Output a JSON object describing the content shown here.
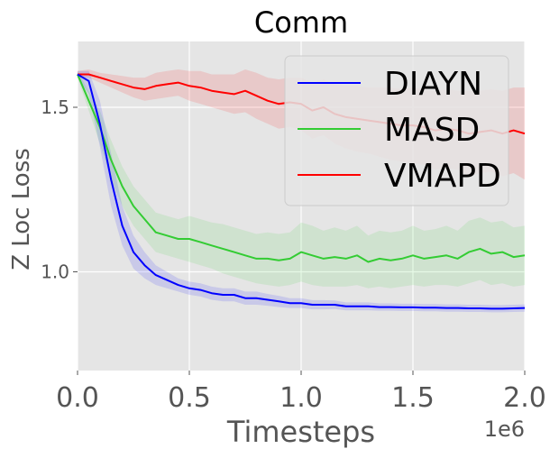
{
  "chart_data": {
    "type": "line",
    "title": "Comm",
    "xlabel": "Timesteps",
    "ylabel": "Z Loc Loss",
    "x_offset_label": "1e6",
    "xlim": [
      0,
      2.0
    ],
    "ylim": [
      0.7,
      1.7
    ],
    "xticks": [
      0.0,
      0.5,
      1.0,
      1.5,
      2.0
    ],
    "xtick_labels": [
      "0.0",
      "0.5",
      "1.0",
      "1.5",
      "2.0"
    ],
    "yticks": [
      1.0,
      1.5
    ],
    "ytick_labels": [
      "1.0",
      "1.5"
    ],
    "grid": true,
    "legend_position": "top-right",
    "x": [
      0.0,
      0.05,
      0.1,
      0.15,
      0.2,
      0.25,
      0.3,
      0.35,
      0.4,
      0.45,
      0.5,
      0.55,
      0.6,
      0.65,
      0.7,
      0.75,
      0.8,
      0.85,
      0.9,
      0.95,
      1.0,
      1.05,
      1.1,
      1.15,
      1.2,
      1.25,
      1.3,
      1.35,
      1.4,
      1.45,
      1.5,
      1.55,
      1.6,
      1.65,
      1.7,
      1.75,
      1.8,
      1.85,
      1.9,
      1.95,
      2.0
    ],
    "series": [
      {
        "name": "DIAYN",
        "color": "#0000ff",
        "values": [
          1.6,
          1.58,
          1.45,
          1.28,
          1.14,
          1.06,
          1.02,
          0.99,
          0.975,
          0.96,
          0.95,
          0.945,
          0.935,
          0.93,
          0.93,
          0.92,
          0.92,
          0.915,
          0.91,
          0.905,
          0.905,
          0.9,
          0.9,
          0.9,
          0.895,
          0.895,
          0.895,
          0.893,
          0.893,
          0.892,
          0.892,
          0.891,
          0.891,
          0.89,
          0.89,
          0.889,
          0.889,
          0.888,
          0.888,
          0.889,
          0.89
        ],
        "lower": [
          1.59,
          1.54,
          1.38,
          1.2,
          1.08,
          1.01,
          0.98,
          0.96,
          0.95,
          0.94,
          0.93,
          0.925,
          0.915,
          0.91,
          0.91,
          0.9,
          0.9,
          0.897,
          0.893,
          0.89,
          0.89,
          0.886,
          0.886,
          0.887,
          0.883,
          0.883,
          0.883,
          0.882,
          0.882,
          0.881,
          0.881,
          0.88,
          0.88,
          0.879,
          0.879,
          0.878,
          0.878,
          0.877,
          0.877,
          0.878,
          0.879
        ],
        "upper": [
          1.61,
          1.61,
          1.52,
          1.36,
          1.2,
          1.11,
          1.06,
          1.02,
          1.0,
          0.98,
          0.97,
          0.965,
          0.955,
          0.95,
          0.95,
          0.94,
          0.94,
          0.933,
          0.927,
          0.92,
          0.92,
          0.914,
          0.914,
          0.913,
          0.907,
          0.907,
          0.907,
          0.904,
          0.904,
          0.903,
          0.903,
          0.902,
          0.902,
          0.901,
          0.901,
          0.9,
          0.9,
          0.899,
          0.899,
          0.9,
          0.901
        ]
      },
      {
        "name": "MASD",
        "color": "#33cc33",
        "values": [
          1.6,
          1.52,
          1.44,
          1.34,
          1.26,
          1.2,
          1.16,
          1.12,
          1.11,
          1.1,
          1.1,
          1.09,
          1.08,
          1.07,
          1.06,
          1.05,
          1.04,
          1.04,
          1.035,
          1.04,
          1.06,
          1.05,
          1.04,
          1.045,
          1.04,
          1.05,
          1.03,
          1.04,
          1.035,
          1.04,
          1.05,
          1.04,
          1.045,
          1.05,
          1.04,
          1.06,
          1.07,
          1.055,
          1.06,
          1.045,
          1.05
        ],
        "lower": [
          1.59,
          1.49,
          1.39,
          1.28,
          1.2,
          1.14,
          1.1,
          1.06,
          1.05,
          1.04,
          1.03,
          1.02,
          1.01,
          0.995,
          0.985,
          0.975,
          0.965,
          0.96,
          0.955,
          0.96,
          0.97,
          0.96,
          0.955,
          0.955,
          0.955,
          0.96,
          0.95,
          0.955,
          0.95,
          0.955,
          0.96,
          0.955,
          0.96,
          0.96,
          0.955,
          0.965,
          0.975,
          0.96,
          0.965,
          0.955,
          0.96
        ],
        "upper": [
          1.61,
          1.55,
          1.49,
          1.4,
          1.32,
          1.26,
          1.22,
          1.18,
          1.17,
          1.16,
          1.17,
          1.16,
          1.15,
          1.145,
          1.135,
          1.125,
          1.115,
          1.12,
          1.115,
          1.12,
          1.15,
          1.14,
          1.125,
          1.135,
          1.125,
          1.14,
          1.11,
          1.125,
          1.12,
          1.125,
          1.14,
          1.125,
          1.13,
          1.14,
          1.125,
          1.155,
          1.165,
          1.15,
          1.155,
          1.135,
          1.14
        ]
      },
      {
        "name": "VMAPD",
        "color": "#ff0000",
        "values": [
          1.6,
          1.6,
          1.59,
          1.58,
          1.57,
          1.56,
          1.555,
          1.565,
          1.57,
          1.575,
          1.565,
          1.56,
          1.55,
          1.545,
          1.54,
          1.55,
          1.535,
          1.52,
          1.51,
          1.515,
          1.51,
          1.49,
          1.5,
          1.48,
          1.47,
          1.465,
          1.46,
          1.455,
          1.45,
          1.445,
          1.445,
          1.44,
          1.43,
          1.435,
          1.43,
          1.42,
          1.425,
          1.43,
          1.42,
          1.43,
          1.42
        ],
        "lower": [
          1.59,
          1.59,
          1.575,
          1.56,
          1.545,
          1.53,
          1.52,
          1.525,
          1.53,
          1.535,
          1.52,
          1.51,
          1.5,
          1.49,
          1.48,
          1.485,
          1.465,
          1.45,
          1.435,
          1.44,
          1.43,
          1.405,
          1.415,
          1.39,
          1.375,
          1.365,
          1.36,
          1.35,
          1.34,
          1.335,
          1.33,
          1.325,
          1.31,
          1.315,
          1.31,
          1.29,
          1.3,
          1.305,
          1.29,
          1.3,
          1.28
        ],
        "upper": [
          1.61,
          1.615,
          1.605,
          1.6,
          1.595,
          1.59,
          1.59,
          1.605,
          1.61,
          1.615,
          1.61,
          1.61,
          1.6,
          1.6,
          1.6,
          1.615,
          1.605,
          1.59,
          1.585,
          1.59,
          1.59,
          1.575,
          1.585,
          1.57,
          1.565,
          1.565,
          1.56,
          1.56,
          1.56,
          1.555,
          1.56,
          1.555,
          1.55,
          1.555,
          1.55,
          1.55,
          1.55,
          1.555,
          1.55,
          1.56,
          1.56
        ]
      }
    ]
  }
}
